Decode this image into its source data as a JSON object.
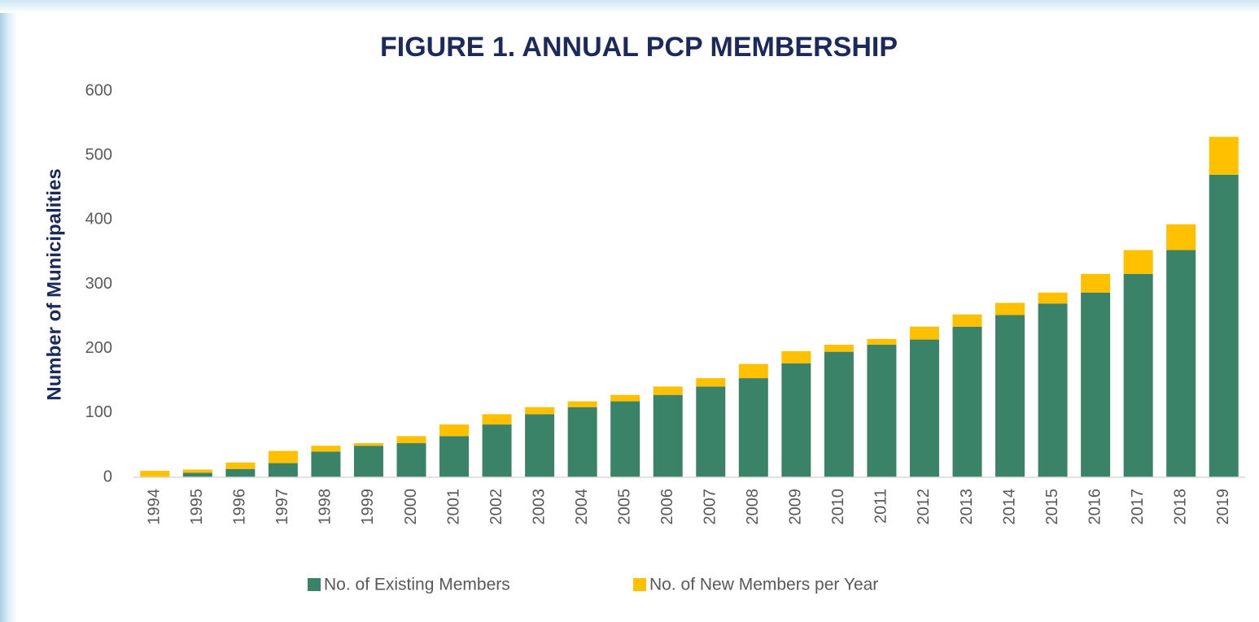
{
  "chart_data": {
    "type": "stacked_bar",
    "title": "FIGURE 1. ANNUAL PCP MEMBERSHIP",
    "y_label": "Number of Municipalities",
    "categories": [
      "1994",
      "1995",
      "1996",
      "1997",
      "1998",
      "1999",
      "2000",
      "2001",
      "2002",
      "2003",
      "2004",
      "2005",
      "2006",
      "2007",
      "2008",
      "2009",
      "2010",
      "2011",
      "2012",
      "2013",
      "2014",
      "2015",
      "2016",
      "2017",
      "2018",
      "2019"
    ],
    "series": [
      {
        "name": "No. of Existing Members",
        "color": "#3b8368",
        "values": [
          0,
          7,
          13,
          22,
          40,
          49,
          53,
          64,
          82,
          98,
          109,
          118,
          128,
          141,
          154,
          177,
          195,
          206,
          214,
          234,
          252,
          270,
          287,
          316,
          353,
          470
        ]
      },
      {
        "name": "No. of New Members per Year",
        "color": "#ffc000",
        "values": [
          10,
          5,
          10,
          19,
          9,
          4,
          11,
          18,
          16,
          11,
          9,
          10,
          13,
          13,
          22,
          19,
          11,
          9,
          20,
          19,
          19,
          17,
          29,
          37,
          40,
          59
        ]
      }
    ],
    "ylim": [
      0,
      600
    ],
    "yticks": [
      0,
      100,
      200,
      300,
      400,
      500,
      600
    ],
    "grid": false,
    "legend": "bottom"
  }
}
